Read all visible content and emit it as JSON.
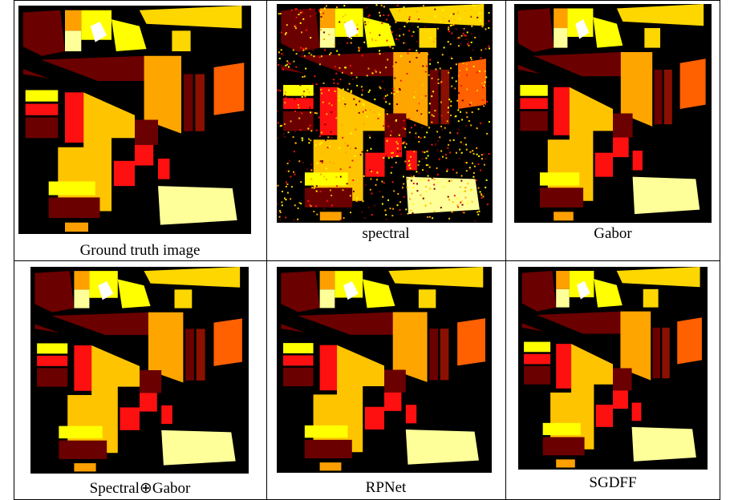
{
  "rows": [
    [
      {
        "caption": "Ground truth image"
      },
      {
        "caption": "spectral"
      },
      {
        "caption": "Gabor"
      }
    ],
    [
      {
        "caption": "Spectral⊕Gabor"
      },
      {
        "caption": "RPNet"
      },
      {
        "caption": "SGDFF"
      }
    ]
  ]
}
